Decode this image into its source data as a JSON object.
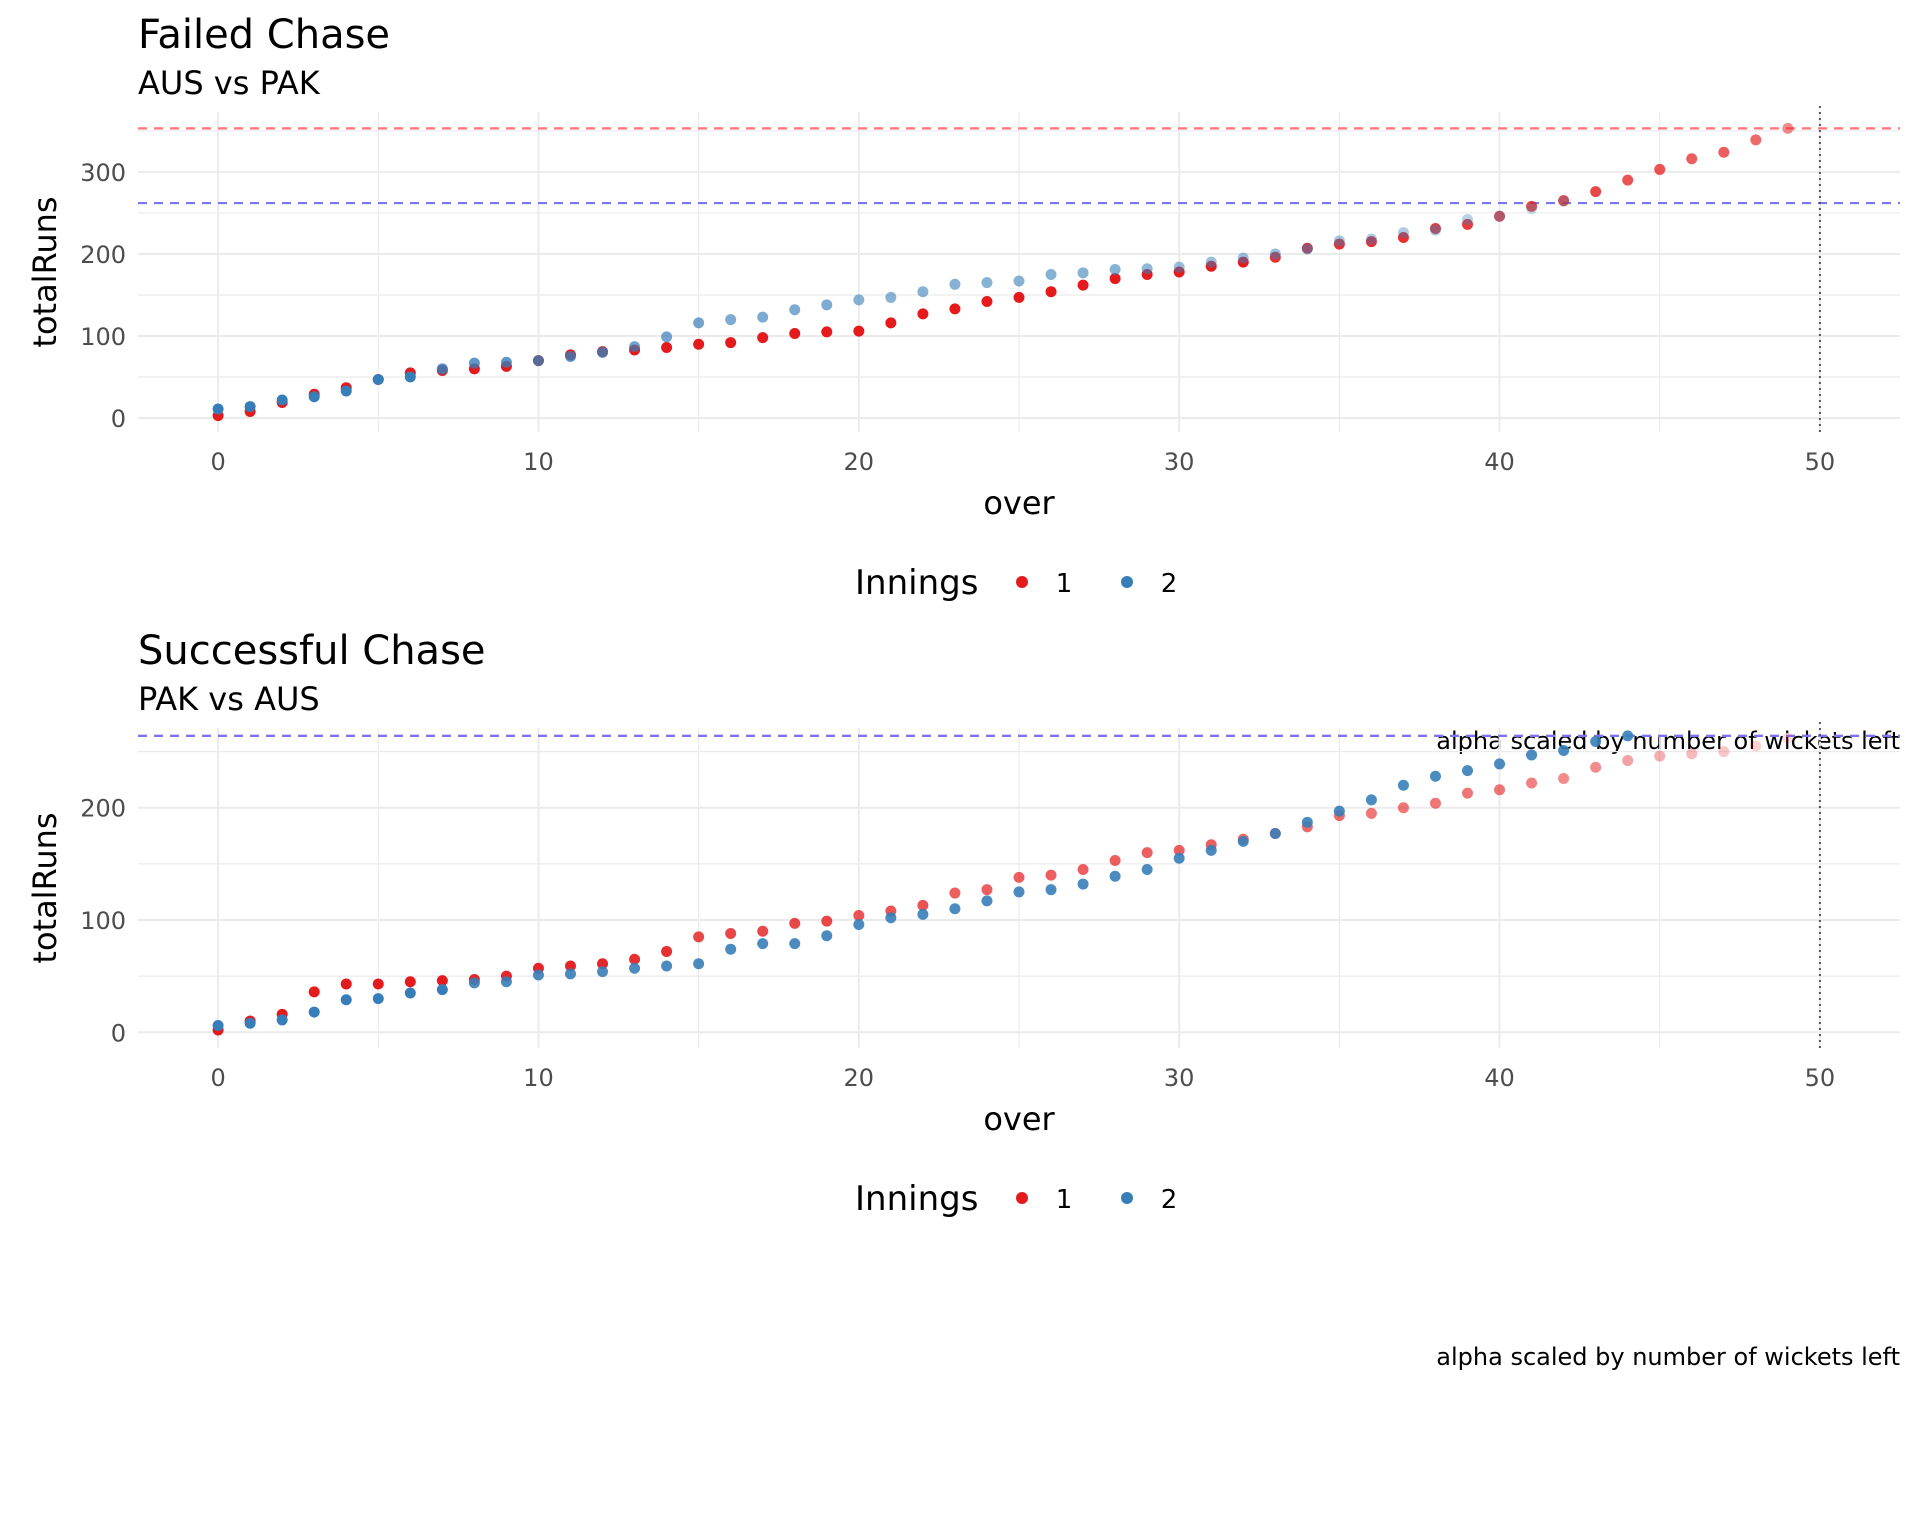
{
  "colors": {
    "innings1": "#E41A1C",
    "innings2": "#377EB8",
    "target1": "#ff7777",
    "target2": "#7777ee",
    "grid": "#ebebeb",
    "vline": "#555555"
  },
  "chart_data": [
    {
      "type": "scatter",
      "title": "Failed Chase",
      "subtitle": "AUS vs PAK",
      "xlabel": "over",
      "ylabel": "totalRuns",
      "xlim": [
        -2.5,
        52.5
      ],
      "ylim": [
        -17,
        373
      ],
      "xticks": [
        0,
        10,
        20,
        30,
        40,
        50
      ],
      "yticks": [
        0,
        100,
        200,
        300
      ],
      "grid": true,
      "legend": {
        "title": "Innings",
        "position": "bottom",
        "items": [
          "1",
          "2"
        ]
      },
      "caption": "alpha scaled by number of wickets left",
      "hlines": [
        {
          "y": 353,
          "series": "1"
        },
        {
          "y": 262,
          "series": "2"
        }
      ],
      "vline": 50,
      "series": [
        {
          "name": "1",
          "x": [
            0,
            1,
            2,
            3,
            4,
            5,
            6,
            7,
            8,
            9,
            10,
            11,
            12,
            13,
            14,
            15,
            16,
            17,
            18,
            19,
            20,
            21,
            22,
            23,
            24,
            25,
            26,
            27,
            28,
            29,
            30,
            31,
            32,
            33,
            34,
            35,
            36,
            37,
            38,
            39,
            40,
            41,
            42,
            43,
            44,
            45,
            46,
            47,
            48,
            49
          ],
          "y": [
            3,
            8,
            19,
            29,
            37,
            47,
            55,
            58,
            60,
            63,
            70,
            77,
            81,
            83,
            86,
            90,
            92,
            98,
            103,
            105,
            106,
            116,
            127,
            133,
            142,
            147,
            154,
            162,
            170,
            175,
            178,
            185,
            190,
            196,
            207,
            212,
            215,
            220,
            231,
            236,
            246,
            258,
            265,
            276,
            290,
            303,
            316,
            324,
            339,
            353
          ],
          "alpha": [
            1,
            1,
            1,
            1,
            1,
            1,
            1,
            1,
            1,
            1,
            1,
            1,
            1,
            1,
            1,
            1,
            1,
            1,
            1,
            1,
            1,
            1,
            1,
            1,
            1,
            1,
            1,
            1,
            1,
            1,
            1,
            1,
            1,
            0.9,
            0.9,
            0.9,
            0.9,
            0.9,
            0.85,
            0.85,
            0.8,
            0.8,
            0.8,
            0.8,
            0.75,
            0.75,
            0.7,
            0.7,
            0.65,
            0.5
          ]
        },
        {
          "name": "2",
          "x": [
            0,
            1,
            2,
            3,
            4,
            5,
            6,
            7,
            8,
            9,
            10,
            11,
            12,
            13,
            14,
            15,
            16,
            17,
            18,
            19,
            20,
            21,
            22,
            23,
            24,
            25,
            26,
            27,
            28,
            29,
            30,
            31,
            32,
            33,
            34,
            35,
            36,
            37,
            38,
            39,
            40,
            41,
            42
          ],
          "y": [
            11,
            14,
            22,
            26,
            33,
            47,
            50,
            60,
            67,
            68,
            70,
            75,
            80,
            87,
            99,
            116,
            120,
            123,
            132,
            138,
            144,
            147,
            154,
            163,
            165,
            167,
            175,
            177,
            181,
            182,
            184,
            190,
            195,
            200,
            206,
            216,
            218,
            226,
            229,
            242,
            246,
            255,
            264
          ],
          "alpha": [
            1,
            1,
            1,
            1,
            1,
            1,
            1,
            0.85,
            0.8,
            0.8,
            0.8,
            0.8,
            0.8,
            0.7,
            0.7,
            0.7,
            0.65,
            0.65,
            0.65,
            0.65,
            0.6,
            0.6,
            0.6,
            0.6,
            0.6,
            0.6,
            0.6,
            0.6,
            0.6,
            0.55,
            0.5,
            0.5,
            0.5,
            0.5,
            0.5,
            0.45,
            0.4,
            0.4,
            0.4,
            0.35,
            0.3,
            0.25,
            0.25
          ]
        }
      ]
    },
    {
      "type": "scatter",
      "title": "Successful Chase",
      "subtitle": "PAK vs AUS",
      "xlabel": "over",
      "ylabel": "totalRuns",
      "xlim": [
        -2.5,
        52.5
      ],
      "ylim": [
        -14,
        271
      ],
      "xticks": [
        0,
        10,
        20,
        30,
        40,
        50
      ],
      "yticks": [
        0,
        100,
        200
      ],
      "grid": true,
      "legend": {
        "title": "Innings",
        "position": "bottom",
        "items": [
          "1",
          "2"
        ]
      },
      "caption": "alpha scaled by number of wickets left",
      "hlines": [
        {
          "y": 264,
          "series": "1"
        },
        {
          "y": 264,
          "series": "2"
        }
      ],
      "vline": 50,
      "series": [
        {
          "name": "1",
          "x": [
            0,
            1,
            2,
            3,
            4,
            5,
            6,
            7,
            8,
            9,
            10,
            11,
            12,
            13,
            14,
            15,
            16,
            17,
            18,
            19,
            20,
            21,
            22,
            23,
            24,
            25,
            26,
            27,
            28,
            29,
            30,
            31,
            32,
            33,
            34,
            35,
            36,
            37,
            38,
            39,
            40,
            41,
            42,
            43,
            44,
            45,
            46,
            47,
            48,
            49
          ],
          "y": [
            2,
            10,
            16,
            36,
            43,
            43,
            45,
            46,
            47,
            50,
            57,
            59,
            61,
            65,
            72,
            85,
            88,
            90,
            97,
            99,
            104,
            108,
            113,
            124,
            127,
            138,
            140,
            145,
            153,
            160,
            162,
            167,
            172,
            177,
            183,
            193,
            195,
            200,
            204,
            213,
            216,
            222,
            226,
            236,
            242,
            246,
            248,
            250,
            255,
            262
          ],
          "alpha": [
            1,
            1,
            1,
            1,
            1,
            1,
            1,
            1,
            0.95,
            0.95,
            0.95,
            0.95,
            0.95,
            0.9,
            0.9,
            0.8,
            0.8,
            0.8,
            0.8,
            0.8,
            0.75,
            0.75,
            0.75,
            0.7,
            0.7,
            0.7,
            0.7,
            0.7,
            0.7,
            0.7,
            0.7,
            0.7,
            0.65,
            0.65,
            0.65,
            0.65,
            0.6,
            0.6,
            0.6,
            0.6,
            0.6,
            0.55,
            0.5,
            0.5,
            0.4,
            0.35,
            0.3,
            0.25,
            0.2,
            0.15
          ]
        },
        {
          "name": "2",
          "x": [
            0,
            1,
            2,
            3,
            4,
            5,
            6,
            7,
            8,
            9,
            10,
            11,
            12,
            13,
            14,
            15,
            16,
            17,
            18,
            19,
            20,
            21,
            22,
            23,
            24,
            25,
            26,
            27,
            28,
            29,
            30,
            31,
            32,
            33,
            34,
            35,
            36,
            37,
            38,
            39,
            40,
            41,
            42,
            43,
            44
          ],
          "y": [
            6,
            8,
            11,
            18,
            29,
            30,
            35,
            38,
            44,
            45,
            51,
            52,
            54,
            57,
            59,
            61,
            74,
            79,
            79,
            86,
            96,
            102,
            105,
            110,
            117,
            125,
            127,
            132,
            139,
            145,
            155,
            162,
            170,
            177,
            187,
            197,
            207,
            220,
            228,
            233,
            239,
            247,
            251,
            259,
            264
          ],
          "alpha": [
            1,
            1,
            1,
            1,
            1,
            1,
            1,
            1,
            0.9,
            0.9,
            0.9,
            0.9,
            0.9,
            0.9,
            0.9,
            0.9,
            0.9,
            0.9,
            0.9,
            0.9,
            0.9,
            0.9,
            0.9,
            0.9,
            0.9,
            0.9,
            0.9,
            0.9,
            0.9,
            0.9,
            0.9,
            0.9,
            0.9,
            0.9,
            0.9,
            0.9,
            0.9,
            0.9,
            0.9,
            0.9,
            0.9,
            0.9,
            0.9,
            0.9,
            0.9
          ]
        }
      ]
    }
  ]
}
